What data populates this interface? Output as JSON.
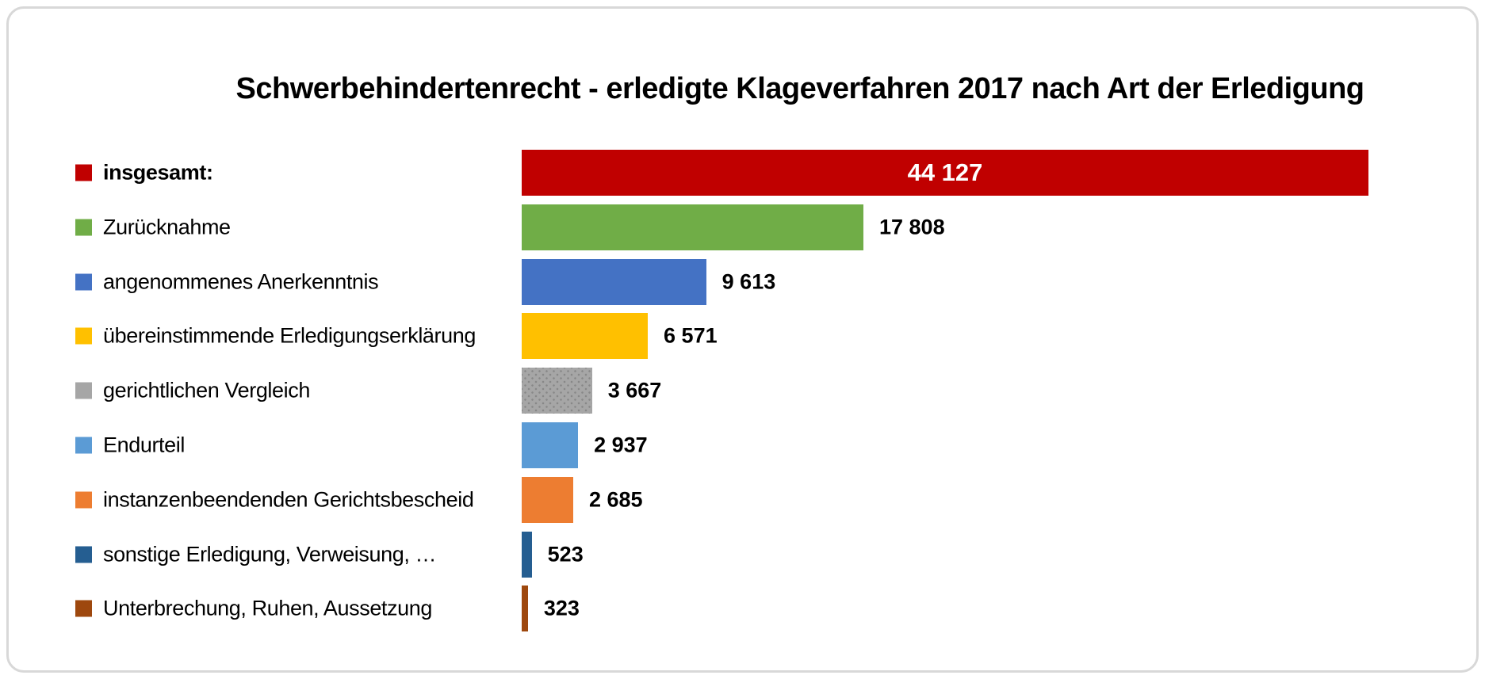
{
  "title": "Schwerbehindertenrecht - erledigte Klageverfahren 2017 nach Art der Erledigung",
  "chart_data": {
    "type": "bar",
    "orientation": "horizontal",
    "title": "Schwerbehindertenrecht - erledigte Klageverfahren 2017 nach Art der Erledigung",
    "categories": [
      "insgesamt:",
      "Zurücknahme",
      "angenommenes Anerkenntnis",
      "übereinstimmende Erledigungserklärung",
      "gerichtlichen Vergleich",
      "Endurteil",
      "instanzenbeendenden Gerichtsbescheid",
      "sonstige Erledigung, Verweisung, …",
      "Unterbrechung, Ruhen, Aussetzung"
    ],
    "values": [
      44127,
      17808,
      9613,
      6571,
      3667,
      2937,
      2685,
      523,
      323
    ],
    "value_labels": [
      "44 127",
      "17 808",
      "9 613",
      "6 571",
      "3 667",
      "2 937",
      "2 685",
      "523",
      "323"
    ],
    "colors": [
      "#C00000",
      "#70AD47",
      "#4472C4",
      "#FFC000",
      "#A6A6A6",
      "#5B9BD5",
      "#ED7D31",
      "#255E91",
      "#9E480E"
    ],
    "xlim": [
      0,
      44127
    ],
    "grid": false,
    "axis_labels_visible": false,
    "legend_position": "left",
    "value_label_inside_index": 0,
    "bold_category_index": 0,
    "patterned_bar_index": 4
  },
  "styles": {
    "card_border_color": "#D8D8D8",
    "inside_value_color": "#FFFFFF",
    "text_color": "#000000"
  }
}
